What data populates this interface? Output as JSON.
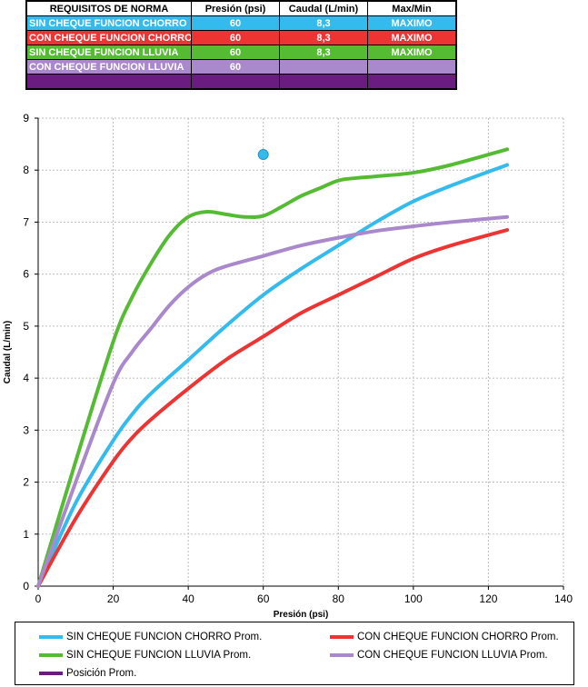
{
  "table": {
    "headers": [
      "REQUISITOS DE NORMA",
      "Presión (psi)",
      "Caudal (L/min)",
      "Max/Min"
    ],
    "rows": [
      {
        "label": "SIN CHEQUE FUNCION CHORRO",
        "presion": "60",
        "caudal": "8,3",
        "maxmin": "MAXIMO",
        "color": "#33bbee"
      },
      {
        "label": "CON CHEQUE FUNCION CHORRO",
        "presion": "60",
        "caudal": "8,3",
        "maxmin": "MAXIMO",
        "color": "#ee3333"
      },
      {
        "label": "SIN CHEQUE FUNCION LLUVIA",
        "presion": "60",
        "caudal": "8,3",
        "maxmin": "MAXIMO",
        "color": "#55bb33"
      },
      {
        "label": "CON CHEQUE FUNCION LLUVIA",
        "presion": "60",
        "caudal": "",
        "maxmin": "",
        "color": "#aa88cc"
      },
      {
        "label": "",
        "presion": "",
        "caudal": "",
        "maxmin": "",
        "color": "#6a1c80"
      }
    ]
  },
  "chart_data": {
    "type": "line",
    "xlabel": "Presión (psi)",
    "ylabel": "Caudal (L/min)",
    "xlim": [
      0,
      140
    ],
    "ylim": [
      0,
      9
    ],
    "xticks": [
      0,
      20,
      40,
      60,
      80,
      100,
      120,
      140
    ],
    "yticks": [
      0,
      1,
      2,
      3,
      4,
      5,
      6,
      7,
      8,
      9
    ],
    "grid": true,
    "legend_position": "bottom",
    "series": [
      {
        "name": "SIN CHEQUE FUNCION CHORRO Prom.",
        "color": "#33bbee",
        "x": [
          0,
          10,
          20,
          25,
          30,
          40,
          50,
          60,
          70,
          80,
          90,
          100,
          110,
          125
        ],
        "y": [
          0,
          1.6,
          2.8,
          3.3,
          3.7,
          4.35,
          5.0,
          5.6,
          6.1,
          6.55,
          7.0,
          7.4,
          7.7,
          8.1
        ]
      },
      {
        "name": "CON CHEQUE FUNCION CHORRO Prom.",
        "color": "#ee3333",
        "x": [
          0,
          10,
          20,
          25,
          30,
          40,
          50,
          60,
          70,
          80,
          90,
          100,
          110,
          125
        ],
        "y": [
          0,
          1.3,
          2.4,
          2.85,
          3.2,
          3.8,
          4.35,
          4.8,
          5.25,
          5.6,
          5.95,
          6.3,
          6.55,
          6.85
        ]
      },
      {
        "name": "SIN CHEQUE FUNCION LLUVIA Prom.",
        "color": "#55bb33",
        "x": [
          0,
          10,
          20,
          25,
          30,
          35,
          40,
          45,
          50,
          55,
          60,
          65,
          70,
          75,
          80,
          85,
          90,
          100,
          110,
          125
        ],
        "y": [
          0,
          2.4,
          4.7,
          5.55,
          6.2,
          6.75,
          7.1,
          7.2,
          7.15,
          7.1,
          7.12,
          7.3,
          7.5,
          7.65,
          7.8,
          7.85,
          7.88,
          7.95,
          8.1,
          8.4
        ]
      },
      {
        "name": "CON CHEQUE FUNCION LLUVIA Prom.",
        "color": "#aa88cc",
        "x": [
          0,
          10,
          20,
          25,
          30,
          35,
          40,
          45,
          50,
          60,
          70,
          80,
          90,
          100,
          110,
          125
        ],
        "y": [
          0,
          2.0,
          3.9,
          4.5,
          4.95,
          5.4,
          5.75,
          6.0,
          6.15,
          6.35,
          6.55,
          6.7,
          6.83,
          6.92,
          7.0,
          7.1
        ]
      },
      {
        "name": "Posición Prom.",
        "color": "#6a1c80",
        "x": [],
        "y": []
      }
    ],
    "points": [
      {
        "x": 60,
        "y": 8.3,
        "color": "#33bbee"
      }
    ]
  }
}
